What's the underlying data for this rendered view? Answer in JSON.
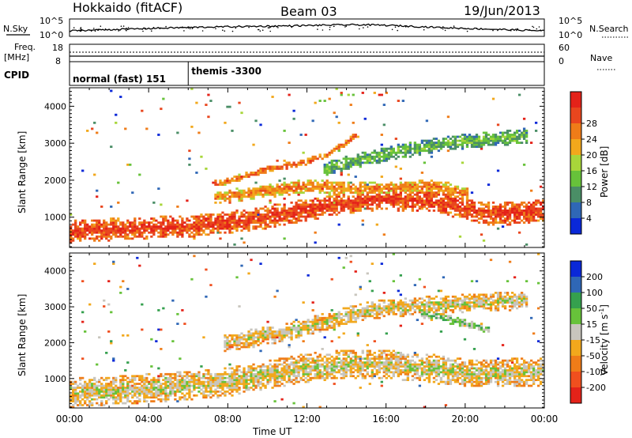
{
  "header": {
    "station": "Hokkaido (fitACF)",
    "beam": "Beam 03",
    "date": "19/Jun/2013"
  },
  "top_panel": {
    "nsky_label": "N.Sky",
    "nsky_ticks": [
      "10^5",
      "10^0"
    ],
    "nsearch_label": "N.Search",
    "nsearch_ticks": [
      "10^5",
      "10^0"
    ]
  },
  "freq_panel": {
    "freq_label": "Freq.",
    "freq_unit": "[MHz]",
    "freq_ticks": [
      "18",
      "8"
    ],
    "nave_label": "Nave",
    "nave_ticks": [
      "60",
      "0"
    ]
  },
  "cpid_panel": {
    "label": "CPID",
    "modes": [
      {
        "text": "normal (fast) 151",
        "start_hour": 0
      },
      {
        "text": "themis -3300",
        "start_hour": 6
      }
    ]
  },
  "colors": {
    "power": [
      "#0a28d8",
      "#2f67b6",
      "#4a8e66",
      "#67c23a",
      "#a8d63a",
      "#f2a81c",
      "#ef7c18",
      "#e9461e",
      "#e42219"
    ],
    "velocity": [
      "#e42219",
      "#f04f1e",
      "#ef7c18",
      "#f2a81c",
      "#c8c5bd",
      "#67c23a",
      "#35a04e",
      "#2f67b6",
      "#0a28d8"
    ],
    "frame": "#000000"
  },
  "chart_data": [
    {
      "type": "heatmap",
      "panel": "power",
      "xlabel": "",
      "ylabel": "Slant Range [km]",
      "xlim": [
        0,
        24
      ],
      "ylim": [
        180,
        4500
      ],
      "yticks": [
        "1000",
        "2000",
        "3000",
        "4000"
      ],
      "colorbar": {
        "label": "Power [dB]",
        "ticks": [
          "4",
          "8",
          "12",
          "16",
          "20",
          "24",
          "28"
        ]
      },
      "echo_bands": [
        {
          "x": [
            0,
            3,
            6,
            8,
            10,
            12,
            14,
            16,
            18,
            19.5,
            21,
            22.5,
            24
          ],
          "y": [
            600,
            700,
            750,
            850,
            1000,
            1200,
            1400,
            1500,
            1450,
            1300,
            1100,
            1100,
            1200
          ],
          "width_km": 600,
          "level": 7.4
        },
        {
          "x": [
            7.5,
            10,
            12,
            14,
            16,
            18,
            19,
            20
          ],
          "y": [
            1550,
            1700,
            1850,
            1800,
            1750,
            1850,
            1800,
            1600
          ],
          "width_km": 350,
          "level": 6
        },
        {
          "x": [
            7.5,
            10,
            12,
            13,
            14.5
          ],
          "y": [
            1900,
            2300,
            2500,
            2700,
            3200
          ],
          "width_km": 180,
          "level": 6.5
        },
        {
          "x": [
            13,
            15,
            17,
            19,
            21,
            23
          ],
          "y": [
            2300,
            2600,
            2800,
            3000,
            3100,
            3200
          ],
          "width_km": 400,
          "level": 3
        }
      ]
    },
    {
      "type": "heatmap",
      "panel": "velocity",
      "xlabel": "Time UT",
      "ylabel": "Slant Range [km]",
      "xlim": [
        0,
        24
      ],
      "ylim": [
        180,
        4500
      ],
      "yticks": [
        "1000",
        "2000",
        "3000",
        "4000"
      ],
      "xticks": [
        "00:00",
        "04:00",
        "08:00",
        "12:00",
        "16:00",
        "20:00",
        "00:00"
      ],
      "colorbar": {
        "label": "Velocity [m s",
        "label_exp": "-1",
        "label_end": "]",
        "ticks": [
          "200",
          "100",
          "50",
          "15",
          "-15",
          "-50",
          "-100",
          "-200"
        ]
      },
      "echo_bands": [
        {
          "x": [
            0,
            3,
            6,
            8,
            10,
            12,
            14,
            16,
            18,
            20,
            22,
            24
          ],
          "y": [
            600,
            700,
            800,
            900,
            1100,
            1300,
            1400,
            1400,
            1300,
            1150,
            1150,
            1200
          ],
          "width_km": 800,
          "level": 4
        },
        {
          "x": [
            8,
            11,
            13,
            15,
            17,
            20,
            23
          ],
          "y": [
            2000,
            2300,
            2600,
            2900,
            3000,
            3100,
            3200
          ],
          "width_km": 500,
          "level": 4
        },
        {
          "x": [
            8,
            10,
            11.5,
            13
          ],
          "y": [
            1900,
            2100,
            2400,
            2700
          ],
          "width_km": 160,
          "level": 3
        },
        {
          "x": [
            0,
            2,
            4
          ],
          "y": [
            500,
            700,
            900
          ],
          "width_km": 150,
          "level": 2.8
        },
        {
          "x": [
            18,
            19.5,
            21
          ],
          "y": [
            2800,
            2600,
            2400
          ],
          "width_km": 250,
          "level": 5.2
        }
      ]
    }
  ]
}
